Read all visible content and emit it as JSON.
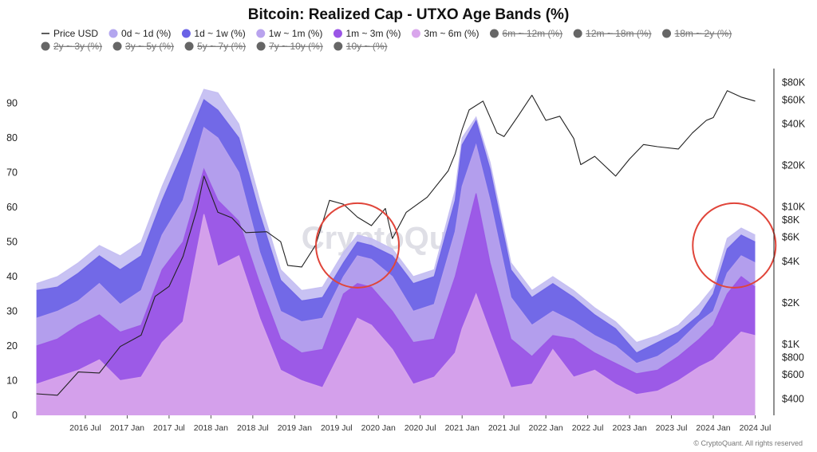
{
  "chart_data": {
    "type": "area",
    "title": "Bitcoin: Realized Cap - UTXO Age Bands (%)",
    "x": [
      "2015-12",
      "2016-03",
      "2016-06",
      "2016-09",
      "2016-12",
      "2017-03",
      "2017-06",
      "2017-09",
      "2017-12",
      "2018-02",
      "2018-05",
      "2018-08",
      "2018-11",
      "2019-02",
      "2019-05",
      "2019-08",
      "2019-10",
      "2019-12",
      "2020-03",
      "2020-06",
      "2020-09",
      "2020-12",
      "2021-01",
      "2021-03",
      "2021-05",
      "2021-08",
      "2021-11",
      "2022-02",
      "2022-05",
      "2022-08",
      "2022-11",
      "2023-02",
      "2023-05",
      "2023-08",
      "2023-11",
      "2024-01",
      "2024-03",
      "2024-05",
      "2024-07"
    ],
    "series": [
      {
        "name": "3m ~ 6m (%)",
        "color": "#d9a6ec",
        "values": [
          9,
          11,
          13,
          16,
          10,
          11,
          21,
          27,
          58,
          43,
          46,
          28,
          13,
          10,
          8,
          20,
          28,
          26,
          19,
          9,
          11,
          18,
          25,
          35,
          24,
          8,
          9,
          19,
          11,
          13,
          9,
          6,
          7,
          10,
          14,
          16,
          20,
          24,
          23
        ]
      },
      {
        "name": "1m ~ 3m (%)",
        "color": "#9a55e6",
        "values": [
          20,
          22,
          26,
          29,
          24,
          26,
          42,
          50,
          71,
          62,
          56,
          38,
          22,
          18,
          19,
          35,
          38,
          37,
          30,
          21,
          22,
          40,
          48,
          64,
          44,
          22,
          17,
          23,
          22,
          18,
          15,
          12,
          13,
          17,
          22,
          26,
          35,
          40,
          37
        ]
      },
      {
        "name": "1w ~ 1m (%)",
        "color": "#b9a3ee",
        "values": [
          28,
          30,
          33,
          38,
          32,
          36,
          52,
          62,
          83,
          80,
          70,
          47,
          30,
          27,
          28,
          40,
          46,
          45,
          40,
          30,
          32,
          53,
          66,
          78,
          62,
          34,
          26,
          30,
          27,
          23,
          20,
          15,
          17,
          21,
          27,
          30,
          41,
          46,
          44
        ]
      },
      {
        "name": "1d ~ 1w (%)",
        "color": "#6a62e6",
        "values": [
          36,
          37,
          41,
          46,
          42,
          46,
          62,
          76,
          91,
          88,
          80,
          58,
          39,
          33,
          34,
          44,
          50,
          49,
          46,
          38,
          40,
          62,
          78,
          85,
          71,
          42,
          34,
          38,
          34,
          29,
          25,
          18,
          21,
          24,
          29,
          35,
          48,
          52,
          50
        ]
      },
      {
        "name": "0d ~ 1d (%)",
        "color": "#c3bdf2",
        "values": [
          38,
          40,
          44,
          49,
          46,
          50,
          66,
          80,
          94,
          93,
          84,
          62,
          42,
          36,
          37,
          47,
          52,
          51,
          48,
          40,
          42,
          65,
          80,
          86,
          73,
          44,
          36,
          40,
          36,
          31,
          27,
          21,
          23,
          26,
          32,
          37,
          51,
          54,
          52
        ]
      }
    ],
    "price": {
      "name": "Price USD",
      "color": "#222222",
      "x": [
        "2015-12",
        "2016-03",
        "2016-06",
        "2016-09",
        "2016-12",
        "2017-03",
        "2017-05",
        "2017-07",
        "2017-09",
        "2017-11",
        "2017-12",
        "2018-02",
        "2018-04",
        "2018-06",
        "2018-09",
        "2018-11",
        "2018-12",
        "2019-02",
        "2019-04",
        "2019-06",
        "2019-08",
        "2019-10",
        "2019-12",
        "2020-02",
        "2020-03",
        "2020-05",
        "2020-08",
        "2020-11",
        "2020-12",
        "2021-01",
        "2021-02",
        "2021-04",
        "2021-06",
        "2021-07",
        "2021-09",
        "2021-11",
        "2022-01",
        "2022-03",
        "2022-05",
        "2022-06",
        "2022-08",
        "2022-11",
        "2023-01",
        "2023-03",
        "2023-05",
        "2023-08",
        "2023-10",
        "2023-12",
        "2024-01",
        "2024-03",
        "2024-05",
        "2024-07"
      ],
      "values": [
        430,
        420,
        620,
        610,
        950,
        1150,
        2200,
        2600,
        4300,
        9500,
        16500,
        9000,
        8200,
        6400,
        6500,
        5500,
        3700,
        3600,
        5200,
        11000,
        10300,
        8300,
        7200,
        9600,
        5800,
        9000,
        11600,
        18000,
        24000,
        36000,
        50000,
        58000,
        34000,
        32000,
        45000,
        64000,
        42000,
        45000,
        31000,
        20000,
        23000,
        16500,
        22000,
        28000,
        27000,
        26000,
        34000,
        42000,
        44000,
        69000,
        62000,
        58000
      ]
    },
    "legend": [
      {
        "label": "Price USD",
        "type": "line",
        "color": "#333333",
        "active": true
      },
      {
        "label": "0d ~ 1d (%)",
        "color": "#b3a6ef",
        "active": true
      },
      {
        "label": "1d ~ 1w (%)",
        "color": "#6a62e6",
        "active": true
      },
      {
        "label": "1w ~ 1m (%)",
        "color": "#b9a3ee",
        "active": true
      },
      {
        "label": "1m ~ 3m (%)",
        "color": "#9a55e6",
        "active": true
      },
      {
        "label": "3m ~ 6m (%)",
        "color": "#d9a6ec",
        "active": true
      },
      {
        "label": "6m ~ 12m (%)",
        "color": "#666666",
        "active": false
      },
      {
        "label": "12m ~ 18m (%)",
        "color": "#666666",
        "active": false
      },
      {
        "label": "18m ~ 2y (%)",
        "color": "#666666",
        "active": false
      },
      {
        "label": "2y ~ 3y (%)",
        "color": "#666666",
        "active": false
      },
      {
        "label": "3y ~ 5y (%)",
        "color": "#666666",
        "active": false
      },
      {
        "label": "5y ~ 7y (%)",
        "color": "#666666",
        "active": false
      },
      {
        "label": "7y ~ 10y (%)",
        "color": "#666666",
        "active": false
      },
      {
        "label": "10y ~ (%)",
        "color": "#666666",
        "active": false
      }
    ],
    "y_left": {
      "ticks": [
        "0",
        "10",
        "20",
        "30",
        "40",
        "50",
        "60",
        "70",
        "80",
        "90"
      ],
      "tick_values": [
        0,
        10,
        20,
        30,
        40,
        50,
        60,
        70,
        80,
        90
      ],
      "range": [
        0,
        100
      ]
    },
    "y_right": {
      "scale": "log",
      "ticks": [
        "$400",
        "$600",
        "$800",
        "$1K",
        "$2K",
        "$4K",
        "$6K",
        "$8K",
        "$10K",
        "$20K",
        "$40K",
        "$60K",
        "$80K"
      ],
      "tick_values": [
        400,
        600,
        800,
        1000,
        2000,
        4000,
        6000,
        8000,
        10000,
        20000,
        40000,
        60000,
        80000
      ],
      "range": [
        300,
        100000
      ]
    },
    "x_axis": {
      "range": [
        "2015-11",
        "2024-09"
      ],
      "ticks": [
        "2016 Jul",
        "2017 Jan",
        "2017 Jul",
        "2018 Jan",
        "2018 Jul",
        "2019 Jan",
        "2019 Jul",
        "2020 Jan",
        "2020 Jul",
        "2021 Jan",
        "2021 Jul",
        "2022 Jan",
        "2022 Jul",
        "2023 Jan",
        "2023 Jul",
        "2024 Jan",
        "2024 Jul"
      ],
      "tick_dates": [
        "2016-07",
        "2017-01",
        "2017-07",
        "2018-01",
        "2018-07",
        "2019-01",
        "2019-07",
        "2020-01",
        "2020-07",
        "2021-01",
        "2021-07",
        "2022-01",
        "2022-07",
        "2023-01",
        "2023-07",
        "2024-01",
        "2024-07"
      ]
    },
    "annotations": [
      {
        "type": "circle",
        "color": "#e0453a",
        "center": [
          "2019-10",
          49
        ]
      },
      {
        "type": "circle",
        "color": "#e0453a",
        "center": [
          "2024-04",
          49
        ]
      }
    ],
    "watermark": "CryptoQuant",
    "copyright": "© CryptoQuant. All rights reserved",
    "grid": false,
    "legend_position": "top"
  }
}
